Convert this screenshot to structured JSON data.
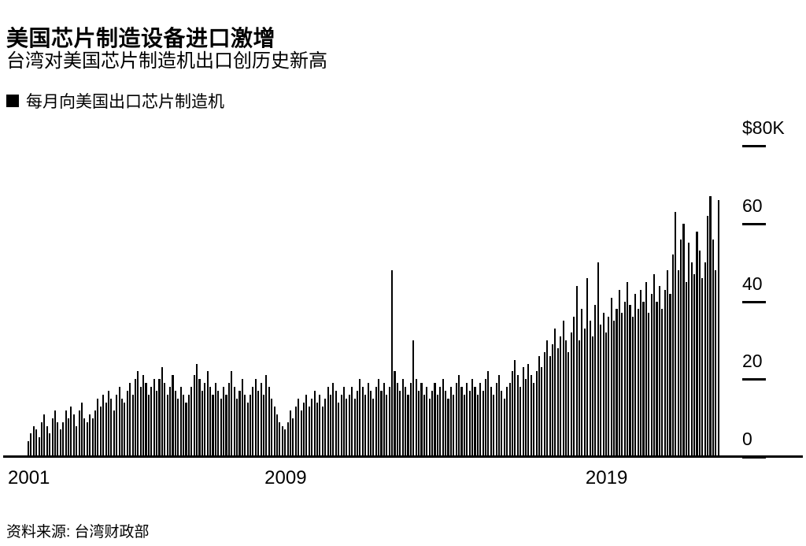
{
  "header": {
    "title": "美国芯片制造设备进口激增",
    "subtitle": "台湾对美国芯片制造机出口创历史新高"
  },
  "legend": {
    "label": "每月向美国出口芯片制造机",
    "marker_color": "#000000"
  },
  "source": "资料来源: 台湾财政部",
  "chart_data": {
    "type": "bar",
    "title": "美国芯片制造设备进口激增",
    "subtitle": "台湾对美国芯片制造机出口创历史新高",
    "series_name": "每月向美国出口芯片制造机",
    "unit": "$K",
    "start_month": "2001-01",
    "frequency": "monthly",
    "ylim": [
      0,
      80
    ],
    "bar_color": "#000000",
    "grid": false,
    "legend_position": "top-left",
    "y_ticks": [
      {
        "label": "$80K",
        "value": 80
      },
      {
        "label": "60",
        "value": 60
      },
      {
        "label": "40",
        "value": 40
      },
      {
        "label": "20",
        "value": 20
      },
      {
        "label": "0",
        "value": 0
      }
    ],
    "x_tick_labels": [
      "2001",
      "2009",
      "2019"
    ],
    "x_tick_indices": [
      0,
      96,
      216
    ],
    "values": [
      4,
      6,
      8,
      7,
      5,
      9,
      11,
      8,
      6,
      10,
      12,
      9,
      7,
      9,
      12,
      10,
      13,
      11,
      8,
      12,
      14,
      10,
      9,
      11,
      10,
      12,
      15,
      13,
      16,
      14,
      17,
      15,
      12,
      16,
      18,
      15,
      14,
      17,
      19,
      16,
      20,
      22,
      18,
      21,
      19,
      16,
      18,
      20,
      17,
      20,
      23,
      19,
      16,
      18,
      21,
      17,
      15,
      18,
      16,
      14,
      16,
      18,
      21,
      24,
      20,
      17,
      19,
      22,
      18,
      16,
      19,
      17,
      15,
      18,
      16,
      19,
      22,
      18,
      15,
      17,
      20,
      16,
      14,
      16,
      18,
      20,
      17,
      19,
      16,
      21,
      18,
      15,
      13,
      11,
      9,
      8,
      7,
      9,
      12,
      10,
      13,
      15,
      12,
      14,
      16,
      13,
      15,
      17,
      14,
      16,
      13,
      15,
      18,
      16,
      19,
      17,
      14,
      16,
      18,
      15,
      16,
      18,
      15,
      17,
      20,
      18,
      16,
      19,
      17,
      15,
      18,
      20,
      17,
      19,
      16,
      18,
      48,
      22,
      19,
      17,
      20,
      18,
      16,
      19,
      30,
      20,
      17,
      19,
      16,
      18,
      15,
      17,
      19,
      16,
      18,
      20,
      17,
      15,
      18,
      16,
      19,
      21,
      18,
      16,
      19,
      17,
      20,
      18,
      16,
      19,
      17,
      20,
      22,
      18,
      16,
      19,
      21,
      17,
      15,
      18,
      19,
      22,
      25,
      21,
      18,
      23,
      20,
      24,
      21,
      19,
      22,
      26,
      23,
      27,
      30,
      26,
      29,
      33,
      28,
      31,
      35,
      30,
      27,
      32,
      36,
      44,
      30,
      38,
      33,
      46,
      35,
      31,
      39,
      50,
      34,
      37,
      32,
      36,
      41,
      35,
      38,
      43,
      37,
      40,
      45,
      39,
      36,
      42,
      38,
      43,
      40,
      45,
      37,
      42,
      47,
      40,
      44,
      38,
      43,
      48,
      42,
      52,
      63,
      48,
      56,
      60,
      45,
      55,
      50,
      47,
      58,
      53,
      46,
      50,
      62,
      67,
      56,
      48,
      66
    ]
  }
}
